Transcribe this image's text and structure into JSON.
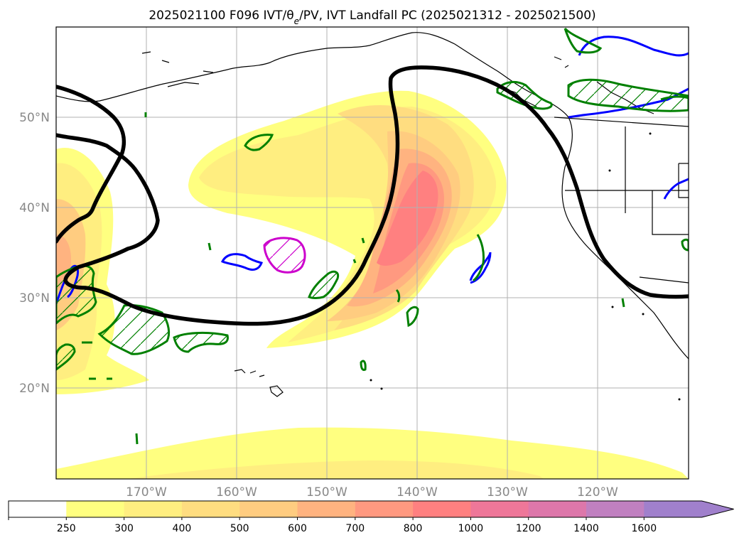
{
  "title": "2025021100 F096 IVT/θe/PV, IVT Landfall PC (2025021312 - 2025021500)",
  "map": {
    "lon_range": [
      -180,
      -110
    ],
    "lat_range": [
      10,
      60
    ],
    "lat_gridlines": [
      "50°N",
      "40°N",
      "30°N",
      "20°N"
    ],
    "lon_gridlines": [
      "170°W",
      "160°W",
      "150°W",
      "140°W",
      "130°W",
      "120°W"
    ],
    "grid": true,
    "colors": {
      "pv_contour": "#000000",
      "theta_e_contour": "#008000",
      "blue_contour": "#0000ff",
      "magenta_contour": "#cc00cc",
      "coastline": "#000000"
    }
  },
  "colorbar": {
    "levels": [
      "250",
      "300",
      "400",
      "500",
      "600",
      "700",
      "800",
      "1000",
      "1200",
      "1400",
      "1600"
    ],
    "colors": [
      "#ffffff",
      "#ffff80",
      "#ffee80",
      "#ffdd80",
      "#ffcc80",
      "#ffb380",
      "#ff9980",
      "#ff8080",
      "#ee7799",
      "#dd77aa",
      "#c080c0",
      "#a080cc"
    ],
    "extend": "max"
  }
}
